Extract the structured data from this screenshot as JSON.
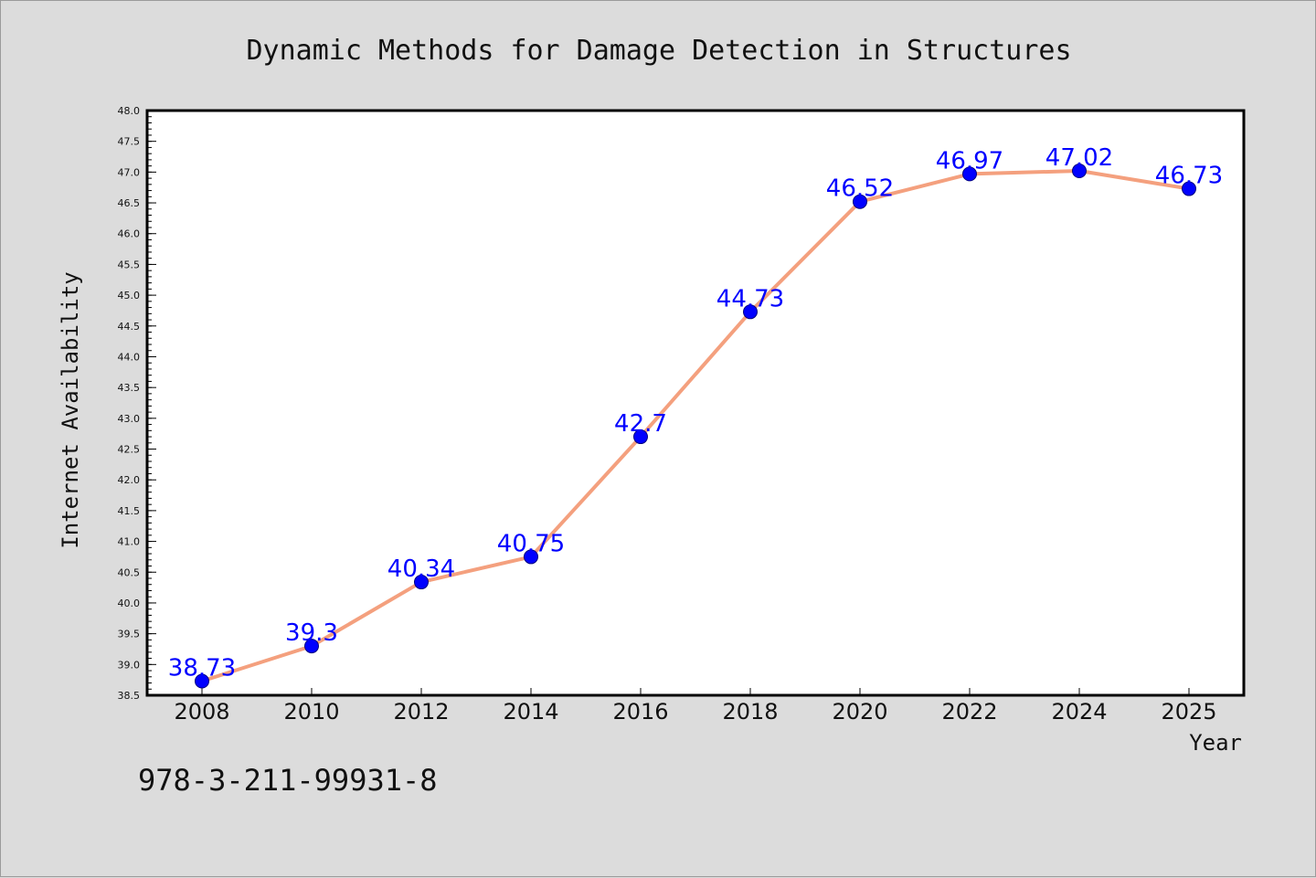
{
  "chart_data": {
    "type": "line",
    "title": "Dynamic Methods for Damage Detection in Structures",
    "xlabel": "Year",
    "ylabel": "Internet Availability",
    "categories": [
      "2008",
      "2010",
      "2012",
      "2014",
      "2016",
      "2018",
      "2020",
      "2022",
      "2024",
      "2025"
    ],
    "values": [
      38.73,
      39.3,
      40.34,
      40.75,
      42.7,
      44.73,
      46.52,
      46.97,
      47.02,
      46.73
    ],
    "data_labels": [
      "38.73",
      "39.3",
      "40.34",
      "40.75",
      "42.7",
      "44.73",
      "46.52",
      "46.97",
      "47.02",
      "46.73"
    ],
    "ylim": [
      38.5,
      48.0
    ],
    "yticks": [
      "38.5",
      "39.0",
      "39.5",
      "40.0",
      "40.5",
      "41.0",
      "41.5",
      "42.0",
      "42.5",
      "43.0",
      "43.5",
      "44.0",
      "44.5",
      "45.0",
      "45.5",
      "46.0",
      "46.5",
      "47.0",
      "47.5",
      "48.0"
    ],
    "grid": false,
    "line_color": "#f4a07e",
    "marker_color": "#0000ff",
    "label_color": "#0000ff",
    "background_color": "#dcdcdc",
    "plot_background": "#ffffff"
  },
  "footer_text": "978-3-211-99931-8"
}
